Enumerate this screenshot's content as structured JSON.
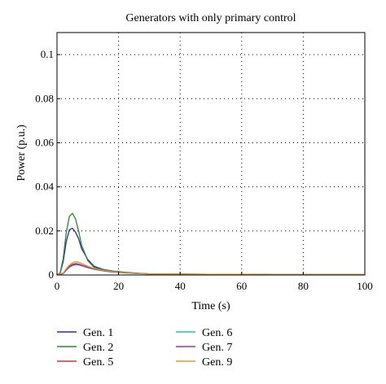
{
  "chart_data": {
    "type": "line",
    "title": "Generators with only primary control",
    "xlabel": "Time (s)",
    "ylabel": "Power (p.u.)",
    "xlim": [
      0,
      100
    ],
    "ylim": [
      0,
      0.11
    ],
    "xticks": [
      0,
      20,
      40,
      60,
      80,
      100
    ],
    "xtick_labels": [
      "0",
      "20",
      "40",
      "60",
      "80",
      "100"
    ],
    "yticks": [
      0,
      0.02,
      0.04,
      0.06,
      0.08,
      0.1
    ],
    "ytick_labels": [
      "0",
      "0.02",
      "0.04",
      "0.06",
      "0.08",
      "0.1"
    ],
    "grid": true,
    "legend_position": "bottom, two columns below plot",
    "series": [
      {
        "name": "Gen. 1",
        "color": "#2b2bb0",
        "x": [
          0,
          1,
          2,
          3,
          4,
          5,
          6,
          7,
          8,
          10,
          12,
          15,
          18,
          22,
          26,
          30,
          40,
          50,
          60,
          70,
          80,
          90,
          100
        ],
        "y": [
          0,
          0.0008,
          0.006,
          0.015,
          0.0205,
          0.0212,
          0.0195,
          0.0165,
          0.012,
          0.007,
          0.004,
          0.0025,
          0.0018,
          0.0012,
          0.0008,
          0.0005,
          0.0003,
          0.0002,
          0.0002,
          0.0001,
          0.0001,
          0.0001,
          0.0001
        ]
      },
      {
        "name": "Gen. 2",
        "color": "#2a8a2a",
        "x": [
          0,
          1,
          2,
          3,
          4,
          5,
          6,
          7,
          8,
          10,
          12,
          15,
          18,
          22,
          26,
          30,
          40,
          50,
          60,
          70,
          80,
          90,
          100
        ],
        "y": [
          0,
          0.0009,
          0.0075,
          0.019,
          0.0265,
          0.028,
          0.0255,
          0.02,
          0.0135,
          0.0065,
          0.0035,
          0.0022,
          0.0016,
          0.0011,
          0.0007,
          0.0005,
          0.0003,
          0.0002,
          0.0002,
          0.0001,
          0.0001,
          0.0001,
          0.0001
        ]
      },
      {
        "name": "Gen. 5",
        "color": "#e03030",
        "x": [
          0,
          2,
          3,
          4,
          5,
          6,
          7,
          8,
          10,
          12,
          15,
          18,
          22,
          26,
          30,
          40,
          50,
          60,
          70,
          80,
          90,
          100
        ],
        "y": [
          0,
          0.0008,
          0.0025,
          0.004,
          0.0048,
          0.0052,
          0.005,
          0.0045,
          0.0035,
          0.0028,
          0.002,
          0.0014,
          0.001,
          0.0007,
          0.0005,
          0.0004,
          0.0003,
          0.0003,
          0.0002,
          0.0002,
          0.0002,
          0.0002
        ]
      },
      {
        "name": "Gen. 6",
        "color": "#20c0c0",
        "x": [
          0,
          2,
          3,
          4,
          5,
          6,
          7,
          8,
          10,
          12,
          15,
          18,
          22,
          26,
          30,
          40,
          50,
          60,
          70,
          80,
          90,
          100
        ],
        "y": [
          0,
          0.0006,
          0.002,
          0.0035,
          0.0042,
          0.0046,
          0.0045,
          0.0042,
          0.0033,
          0.0026,
          0.0019,
          0.0013,
          0.0009,
          0.0006,
          0.0005,
          0.0004,
          0.0003,
          0.0003,
          0.0002,
          0.0002,
          0.0002,
          0.0002
        ]
      },
      {
        "name": "Gen. 7",
        "color": "#a030b0",
        "x": [
          0,
          2,
          3,
          4,
          5,
          6,
          7,
          8,
          10,
          12,
          15,
          18,
          22,
          26,
          30,
          40,
          50,
          60,
          70,
          80,
          90,
          100
        ],
        "y": [
          0,
          0.0007,
          0.0022,
          0.0037,
          0.0045,
          0.0049,
          0.0048,
          0.0043,
          0.0034,
          0.0027,
          0.0019,
          0.0014,
          0.001,
          0.0007,
          0.0005,
          0.0004,
          0.0003,
          0.0003,
          0.0002,
          0.0002,
          0.0002,
          0.0002
        ]
      },
      {
        "name": "Gen. 9",
        "color": "#d8a020",
        "x": [
          0,
          2,
          3,
          4,
          5,
          6,
          7,
          8,
          10,
          12,
          15,
          18,
          22,
          26,
          30,
          40,
          50,
          60,
          70,
          80,
          90,
          100
        ],
        "y": [
          0,
          0.0009,
          0.0028,
          0.0045,
          0.0055,
          0.006,
          0.0058,
          0.0052,
          0.004,
          0.003,
          0.0021,
          0.0015,
          0.001,
          0.0007,
          0.0005,
          0.0004,
          0.0003,
          0.0003,
          0.0002,
          0.0002,
          0.0002,
          0.0002
        ]
      }
    ]
  }
}
